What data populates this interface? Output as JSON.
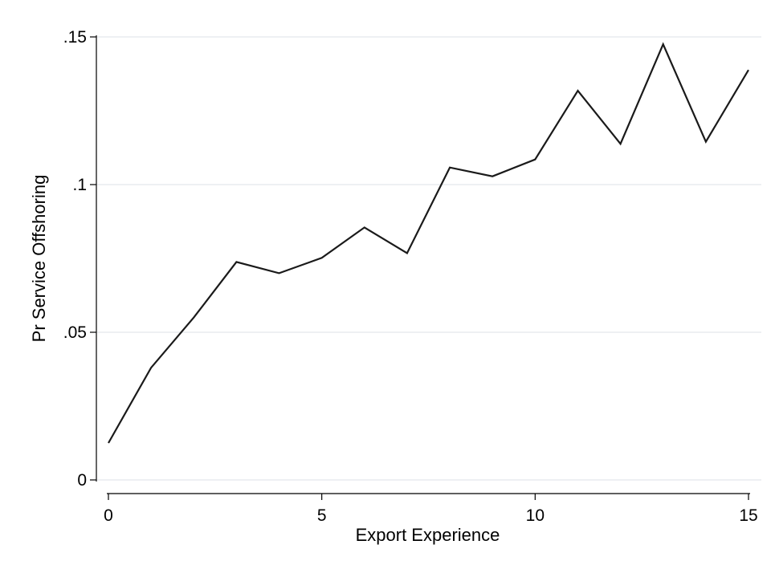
{
  "chart_data": {
    "type": "line",
    "xlabel": "Export Experience",
    "ylabel": "Pr Service Offshoring",
    "xlim": [
      0,
      15
    ],
    "ylim": [
      0,
      0.15
    ],
    "x_ticks": [
      {
        "value": 0,
        "label": "0"
      },
      {
        "value": 5,
        "label": "5"
      },
      {
        "value": 10,
        "label": "10"
      },
      {
        "value": 15,
        "label": "15"
      }
    ],
    "y_ticks": [
      {
        "value": 0,
        "label": "0"
      },
      {
        "value": 0.05,
        "label": ".05"
      },
      {
        "value": 0.1,
        "label": ".1"
      },
      {
        "value": 0.15,
        "label": ".15"
      }
    ],
    "grid": "horizontal",
    "series": [
      {
        "x": [
          0,
          1,
          2,
          3,
          4,
          5,
          6,
          7,
          8,
          9,
          10,
          11,
          12,
          13,
          14,
          15
        ],
        "y": [
          0.0125,
          0.038,
          0.055,
          0.0738,
          0.07,
          0.0752,
          0.0855,
          0.0768,
          0.1058,
          0.1028,
          0.1085,
          0.1318,
          0.1138,
          0.1475,
          0.1145,
          0.1388
        ],
        "color": "#1a1a1a"
      }
    ]
  }
}
